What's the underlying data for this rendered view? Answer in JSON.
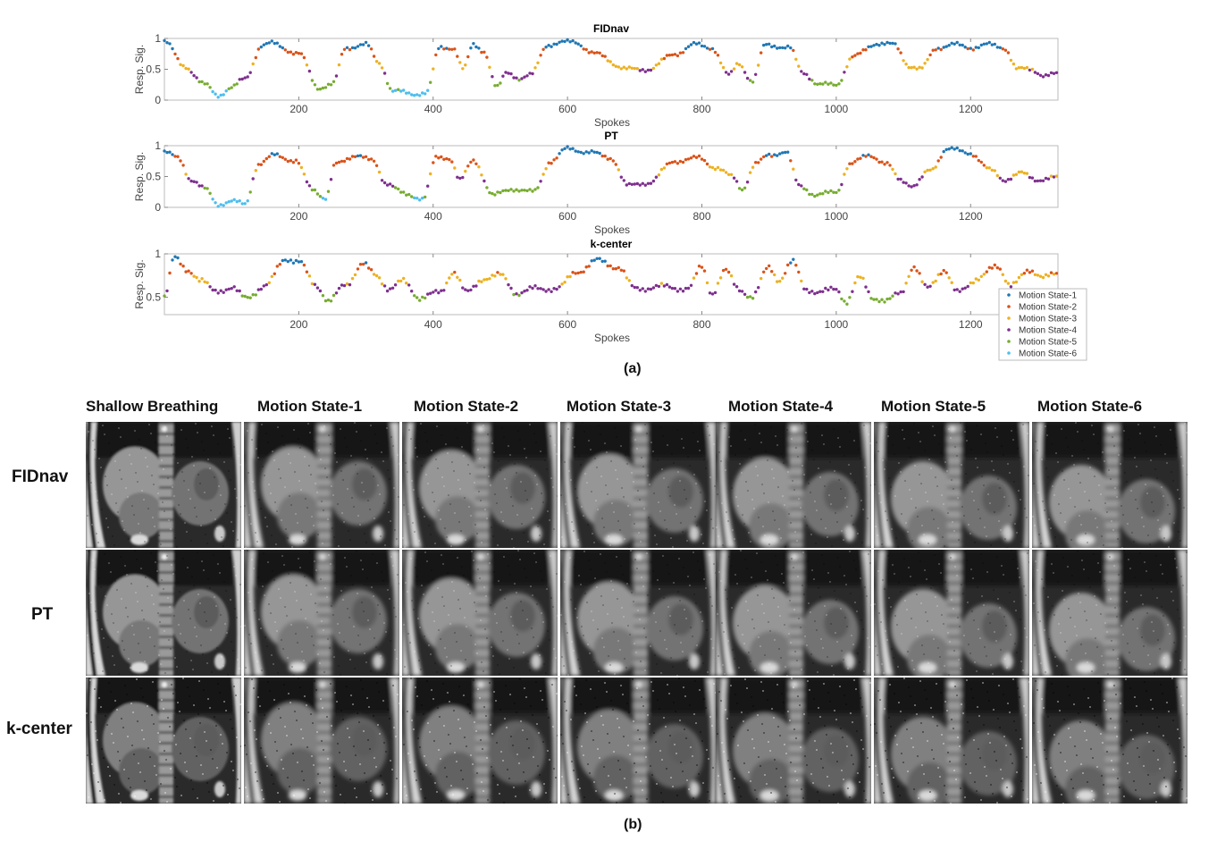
{
  "figure_a": {
    "caption": "(a)",
    "legend": {
      "entries": [
        "Motion State-1",
        "Motion State-2",
        "Motion State-3",
        "Motion State-4",
        "Motion State-5",
        "Motion State-6"
      ],
      "colors": [
        "#1f77b4",
        "#d95319",
        "#edb120",
        "#7e2f8e",
        "#77ac30",
        "#4dbeee"
      ]
    }
  },
  "chart_data": [
    {
      "type": "scatter",
      "title": "FIDnav",
      "xlabel": "Spokes",
      "ylabel": "Resp. Sig.",
      "xlim": [
        0,
        1330
      ],
      "ylim": [
        0,
        1
      ],
      "xticks": [
        200,
        400,
        600,
        800,
        1000,
        1200
      ],
      "yticks": [
        0,
        0.5,
        1
      ],
      "ytick_labels": [
        "0",
        "0.5",
        "1"
      ],
      "series_colors_by_state": [
        "#1f77b4",
        "#d95319",
        "#edb120",
        "#7e2f8e",
        "#77ac30",
        "#4dbeee"
      ],
      "control_points": [
        [
          0,
          0.95
        ],
        [
          30,
          0.55
        ],
        [
          60,
          0.25
        ],
        [
          80,
          0.08
        ],
        [
          100,
          0.2
        ],
        [
          120,
          0.35
        ],
        [
          145,
          0.88
        ],
        [
          160,
          0.92
        ],
        [
          200,
          0.75
        ],
        [
          230,
          0.2
        ],
        [
          250,
          0.25
        ],
        [
          270,
          0.85
        ],
        [
          300,
          0.9
        ],
        [
          320,
          0.6
        ],
        [
          340,
          0.15
        ],
        [
          370,
          0.1
        ],
        [
          390,
          0.12
        ],
        [
          410,
          0.85
        ],
        [
          430,
          0.85
        ],
        [
          445,
          0.5
        ],
        [
          460,
          0.9
        ],
        [
          475,
          0.8
        ],
        [
          495,
          0.2
        ],
        [
          510,
          0.45
        ],
        [
          530,
          0.35
        ],
        [
          545,
          0.4
        ],
        [
          570,
          0.9
        ],
        [
          610,
          0.95
        ],
        [
          640,
          0.75
        ],
        [
          690,
          0.5
        ],
        [
          720,
          0.5
        ],
        [
          760,
          0.75
        ],
        [
          790,
          0.9
        ],
        [
          815,
          0.85
        ],
        [
          840,
          0.4
        ],
        [
          855,
          0.6
        ],
        [
          875,
          0.3
        ],
        [
          895,
          0.9
        ],
        [
          930,
          0.85
        ],
        [
          950,
          0.45
        ],
        [
          975,
          0.25
        ],
        [
          1000,
          0.25
        ],
        [
          1025,
          0.7
        ],
        [
          1060,
          0.92
        ],
        [
          1085,
          0.9
        ],
        [
          1110,
          0.55
        ],
        [
          1125,
          0.5
        ],
        [
          1150,
          0.85
        ],
        [
          1175,
          0.9
        ],
        [
          1200,
          0.85
        ],
        [
          1225,
          0.9
        ],
        [
          1250,
          0.85
        ],
        [
          1270,
          0.5
        ],
        [
          1290,
          0.5
        ],
        [
          1310,
          0.4
        ],
        [
          1330,
          0.42
        ]
      ]
    },
    {
      "type": "scatter",
      "title": "PT",
      "xlabel": "Spokes",
      "ylabel": "Resp. Sig.",
      "xlim": [
        0,
        1330
      ],
      "ylim": [
        0,
        1
      ],
      "xticks": [
        200,
        400,
        600,
        800,
        1000,
        1200
      ],
      "yticks": [
        0,
        0.5,
        1
      ],
      "ytick_labels": [
        "0",
        "0.5",
        "1"
      ],
      "series_colors_by_state": [
        "#1f77b4",
        "#d95319",
        "#edb120",
        "#7e2f8e",
        "#77ac30",
        "#4dbeee"
      ],
      "control_points": [
        [
          0,
          0.9
        ],
        [
          20,
          0.8
        ],
        [
          40,
          0.45
        ],
        [
          60,
          0.3
        ],
        [
          80,
          0.05
        ],
        [
          100,
          0.1
        ],
        [
          120,
          0.05
        ],
        [
          140,
          0.7
        ],
        [
          165,
          0.85
        ],
        [
          195,
          0.75
        ],
        [
          220,
          0.3
        ],
        [
          240,
          0.15
        ],
        [
          255,
          0.7
        ],
        [
          285,
          0.85
        ],
        [
          310,
          0.75
        ],
        [
          330,
          0.4
        ],
        [
          360,
          0.2
        ],
        [
          385,
          0.15
        ],
        [
          405,
          0.8
        ],
        [
          425,
          0.8
        ],
        [
          440,
          0.45
        ],
        [
          460,
          0.75
        ],
        [
          490,
          0.2
        ],
        [
          520,
          0.3
        ],
        [
          550,
          0.25
        ],
        [
          575,
          0.75
        ],
        [
          600,
          0.95
        ],
        [
          630,
          0.9
        ],
        [
          665,
          0.8
        ],
        [
          690,
          0.35
        ],
        [
          720,
          0.4
        ],
        [
          760,
          0.75
        ],
        [
          795,
          0.8
        ],
        [
          820,
          0.65
        ],
        [
          845,
          0.5
        ],
        [
          860,
          0.3
        ],
        [
          880,
          0.7
        ],
        [
          900,
          0.85
        ],
        [
          925,
          0.9
        ],
        [
          945,
          0.35
        ],
        [
          970,
          0.2
        ],
        [
          1000,
          0.25
        ],
        [
          1020,
          0.7
        ],
        [
          1050,
          0.85
        ],
        [
          1075,
          0.7
        ],
        [
          1095,
          0.45
        ],
        [
          1115,
          0.35
        ],
        [
          1140,
          0.6
        ],
        [
          1165,
          0.95
        ],
        [
          1200,
          0.88
        ],
        [
          1230,
          0.6
        ],
        [
          1250,
          0.45
        ],
        [
          1275,
          0.55
        ],
        [
          1300,
          0.45
        ],
        [
          1330,
          0.48
        ]
      ]
    },
    {
      "type": "scatter",
      "title": "k-center",
      "xlabel": "Spokes",
      "ylabel": "Resp. Sig.",
      "xlim": [
        0,
        1330
      ],
      "ylim": [
        0.3,
        1
      ],
      "xticks": [
        200,
        400,
        600,
        800,
        1000,
        1200
      ],
      "yticks": [
        0.5,
        1
      ],
      "ytick_labels": [
        "0.5",
        "1"
      ],
      "series_colors_by_state": [
        "#1f77b4",
        "#d95319",
        "#edb120",
        "#7e2f8e",
        "#77ac30",
        "#4dbeee"
      ],
      "control_points": [
        [
          0,
          0.5
        ],
        [
          15,
          0.95
        ],
        [
          35,
          0.82
        ],
        [
          55,
          0.68
        ],
        [
          75,
          0.58
        ],
        [
          100,
          0.6
        ],
        [
          120,
          0.5
        ],
        [
          150,
          0.62
        ],
        [
          180,
          0.95
        ],
        [
          200,
          0.9
        ],
        [
          225,
          0.65
        ],
        [
          245,
          0.45
        ],
        [
          270,
          0.65
        ],
        [
          295,
          0.88
        ],
        [
          315,
          0.75
        ],
        [
          335,
          0.6
        ],
        [
          355,
          0.68
        ],
        [
          380,
          0.5
        ],
        [
          410,
          0.55
        ],
        [
          430,
          0.8
        ],
        [
          450,
          0.55
        ],
        [
          475,
          0.72
        ],
        [
          500,
          0.75
        ],
        [
          525,
          0.55
        ],
        [
          555,
          0.6
        ],
        [
          585,
          0.6
        ],
        [
          615,
          0.8
        ],
        [
          645,
          0.92
        ],
        [
          675,
          0.85
        ],
        [
          700,
          0.6
        ],
        [
          740,
          0.62
        ],
        [
          780,
          0.6
        ],
        [
          800,
          0.85
        ],
        [
          815,
          0.55
        ],
        [
          835,
          0.8
        ],
        [
          855,
          0.6
        ],
        [
          875,
          0.5
        ],
        [
          900,
          0.85
        ],
        [
          915,
          0.7
        ],
        [
          935,
          0.9
        ],
        [
          955,
          0.6
        ],
        [
          975,
          0.55
        ],
        [
          1000,
          0.6
        ],
        [
          1015,
          0.45
        ],
        [
          1035,
          0.72
        ],
        [
          1055,
          0.5
        ],
        [
          1075,
          0.45
        ],
        [
          1095,
          0.55
        ],
        [
          1115,
          0.85
        ],
        [
          1135,
          0.6
        ],
        [
          1160,
          0.82
        ],
        [
          1180,
          0.55
        ],
        [
          1210,
          0.72
        ],
        [
          1240,
          0.85
        ],
        [
          1260,
          0.65
        ],
        [
          1290,
          0.8
        ],
        [
          1310,
          0.75
        ],
        [
          1330,
          0.75
        ]
      ]
    }
  ],
  "figure_b": {
    "caption": "(b)",
    "columns": [
      "Shallow Breathing",
      "Motion State-1",
      "Motion State-2",
      "Motion State-3",
      "Motion State-4",
      "Motion State-5",
      "Motion State-6"
    ],
    "rows": [
      "FIDnav",
      "PT",
      "k-center"
    ]
  }
}
